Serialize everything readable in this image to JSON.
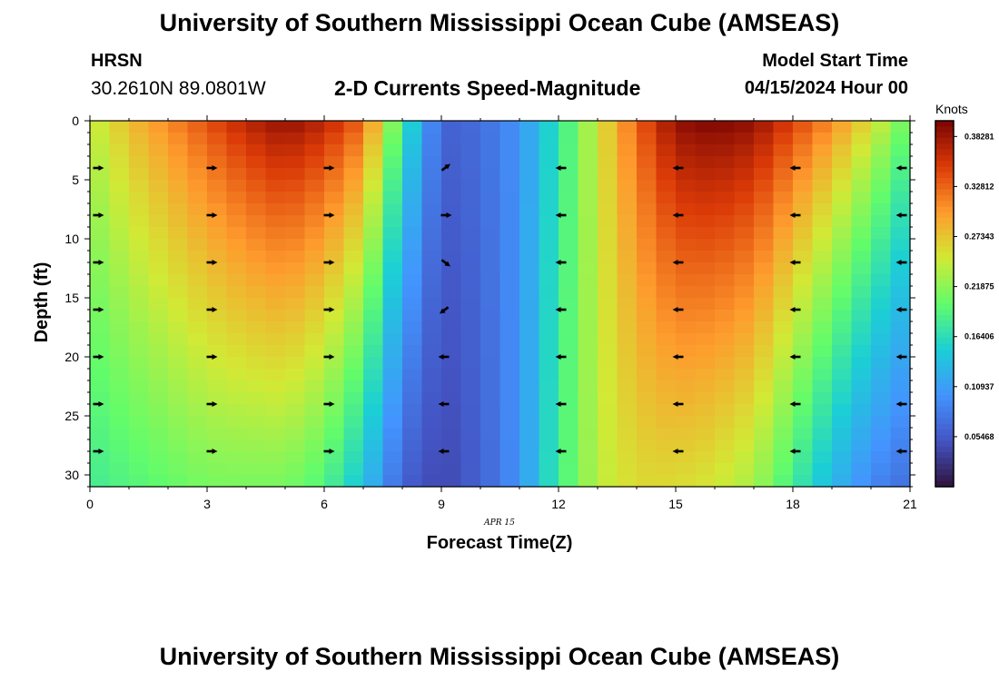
{
  "header": {
    "title": "University of Southern Mississippi Ocean Cube (AMSEAS)",
    "station": "HRSN",
    "coords": "30.2610N  89.0801W",
    "chart_title": "2-D Currents Speed-Magnitude",
    "model_start_label": "Model Start Time",
    "model_start_value": "04/15/2024 Hour 00"
  },
  "footer": {
    "title": "University of Southern Mississippi Ocean Cube (AMSEAS)"
  },
  "colors": {
    "colormap": [
      "#30123b",
      "#4454c4",
      "#4394fe",
      "#1bcfd5",
      "#62fc6b",
      "#d2e935",
      "#fe9b2d",
      "#db3a07",
      "#7a0403"
    ]
  },
  "chart_data": {
    "type": "heatmap",
    "title": "2-D Currents Speed-Magnitude",
    "xlabel": "Forecast Time(Z)",
    "ylabel": "Depth (ft)",
    "x_ticks": [
      0,
      3,
      6,
      9,
      12,
      15,
      18,
      21
    ],
    "y_ticks": [
      0,
      5,
      10,
      15,
      20,
      25,
      30
    ],
    "xlim": [
      0,
      21
    ],
    "ylim": [
      31,
      0
    ],
    "date_label": "APR 15",
    "colorbar": {
      "label": "Knots",
      "min": 0.0,
      "max": 0.4,
      "ticks": [
        "0.05468",
        "0.10937",
        "0.16406",
        "0.21875",
        "0.27343",
        "0.32812",
        "0.38281"
      ]
    },
    "speed_profile_by_hour": {
      "hours": [
        0,
        1,
        2,
        3,
        4,
        5,
        6,
        7,
        8,
        9,
        10,
        11,
        12,
        13,
        14,
        15,
        16,
        17,
        18,
        19,
        20,
        21
      ],
      "surface_knots": [
        0.24,
        0.28,
        0.31,
        0.34,
        0.37,
        0.39,
        0.37,
        0.33,
        0.18,
        0.06,
        0.07,
        0.1,
        0.17,
        0.25,
        0.33,
        0.39,
        0.4,
        0.39,
        0.35,
        0.31,
        0.26,
        0.2
      ],
      "bottom_knots": [
        0.18,
        0.19,
        0.2,
        0.21,
        0.21,
        0.21,
        0.19,
        0.14,
        0.06,
        0.04,
        0.06,
        0.1,
        0.18,
        0.24,
        0.26,
        0.26,
        0.25,
        0.23,
        0.18,
        0.13,
        0.09,
        0.07
      ]
    },
    "arrows": {
      "hours": [
        0,
        3,
        6,
        9,
        12,
        15,
        18,
        21
      ],
      "depths_ft": [
        4,
        8,
        12,
        16,
        20,
        24,
        28
      ],
      "directions": [
        [
          "east",
          "east",
          "east",
          "east",
          "east",
          "east",
          "east"
        ],
        [
          "east",
          "east",
          "east",
          "east",
          "east",
          "east",
          "east"
        ],
        [
          "east",
          "east",
          "east",
          "east",
          "east",
          "east",
          "east"
        ],
        [
          "northeast",
          "east",
          "southeast",
          "southwest",
          "west",
          "west",
          "west"
        ],
        [
          "west",
          "west",
          "west",
          "west",
          "west",
          "west",
          "west"
        ],
        [
          "west",
          "west",
          "west",
          "west",
          "west",
          "west",
          "west"
        ],
        [
          "west",
          "west",
          "west",
          "west",
          "west",
          "west",
          "west"
        ],
        [
          "west",
          "west",
          "west",
          "west",
          "west",
          "west",
          "west"
        ]
      ]
    }
  }
}
